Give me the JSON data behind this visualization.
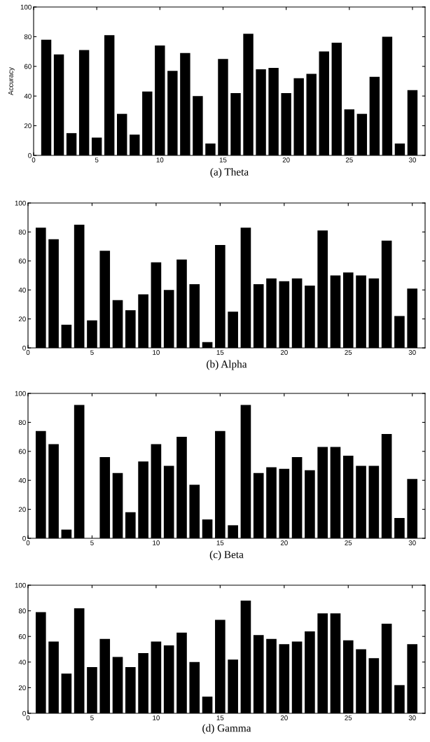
{
  "chart_data": [
    {
      "type": "bar",
      "title": "(a) Theta",
      "ylabel": "Accuracy",
      "x": [
        1,
        2,
        3,
        4,
        5,
        6,
        7,
        8,
        9,
        10,
        11,
        12,
        13,
        14,
        15,
        16,
        17,
        18,
        19,
        20,
        21,
        22,
        23,
        24,
        25,
        26,
        27,
        28,
        29,
        30
      ],
      "color": "#000000",
      "values": [
        78,
        68,
        15,
        71,
        12,
        81,
        28,
        14,
        43,
        74,
        57,
        69,
        40,
        8,
        65,
        42,
        82,
        58,
        59,
        42,
        52,
        55,
        70,
        76,
        31,
        28,
        53,
        80,
        8,
        44
      ],
      "xlim": [
        0,
        31
      ],
      "xticks": [
        0,
        5,
        10,
        15,
        20,
        25,
        30
      ],
      "ylim": [
        0,
        100
      ],
      "yticks": [
        0,
        20,
        40,
        60,
        80,
        100
      ],
      "grid": false,
      "legend": false
    },
    {
      "type": "bar",
      "title": "(b) Alpha",
      "x": [
        1,
        2,
        3,
        4,
        5,
        6,
        7,
        8,
        9,
        10,
        11,
        12,
        13,
        14,
        15,
        16,
        17,
        18,
        19,
        20,
        21,
        22,
        23,
        24,
        25,
        26,
        27,
        28,
        29,
        30
      ],
      "color": "#000000",
      "values": [
        83,
        75,
        16,
        85,
        19,
        67,
        33,
        26,
        37,
        59,
        40,
        61,
        44,
        4,
        71,
        25,
        83,
        44,
        48,
        46,
        48,
        43,
        81,
        50,
        52,
        50,
        48,
        74,
        22,
        41
      ],
      "xlim": [
        0,
        31
      ],
      "xticks": [
        0,
        5,
        10,
        15,
        20,
        25,
        30
      ],
      "ylim": [
        0,
        100
      ],
      "yticks": [
        0,
        20,
        40,
        60,
        80,
        100
      ],
      "grid": false,
      "legend": false
    },
    {
      "type": "bar",
      "title": "(c) Beta",
      "x": [
        1,
        2,
        3,
        4,
        5,
        6,
        7,
        8,
        9,
        10,
        11,
        12,
        13,
        14,
        15,
        16,
        17,
        18,
        19,
        20,
        21,
        22,
        23,
        24,
        25,
        26,
        27,
        28,
        29,
        30
      ],
      "color": "#000000",
      "values": [
        74,
        65,
        6,
        92,
        0,
        56,
        45,
        18,
        53,
        65,
        50,
        70,
        37,
        13,
        74,
        9,
        92,
        45,
        49,
        48,
        56,
        47,
        63,
        63,
        57,
        50,
        50,
        72,
        14,
        41
      ],
      "xlim": [
        0,
        31
      ],
      "xticks": [
        0,
        5,
        10,
        15,
        20,
        25,
        30
      ],
      "ylim": [
        0,
        100
      ],
      "yticks": [
        0,
        20,
        40,
        60,
        80,
        100
      ],
      "grid": false,
      "legend": false
    },
    {
      "type": "bar",
      "title": "(d) Gamma",
      "x": [
        1,
        2,
        3,
        4,
        5,
        6,
        7,
        8,
        9,
        10,
        11,
        12,
        13,
        14,
        15,
        16,
        17,
        18,
        19,
        20,
        21,
        22,
        23,
        24,
        25,
        26,
        27,
        28,
        29,
        30
      ],
      "color": "#000000",
      "values": [
        79,
        56,
        31,
        82,
        36,
        58,
        44,
        36,
        47,
        56,
        53,
        63,
        40,
        13,
        73,
        42,
        88,
        61,
        58,
        54,
        56,
        64,
        78,
        78,
        57,
        50,
        43,
        70,
        22,
        54
      ],
      "xlim": [
        0,
        31
      ],
      "xticks": [
        0,
        5,
        10,
        15,
        20,
        25,
        30
      ],
      "ylim": [
        0,
        100
      ],
      "yticks": [
        0,
        20,
        40,
        60,
        80,
        100
      ],
      "grid": false,
      "legend": false
    }
  ]
}
